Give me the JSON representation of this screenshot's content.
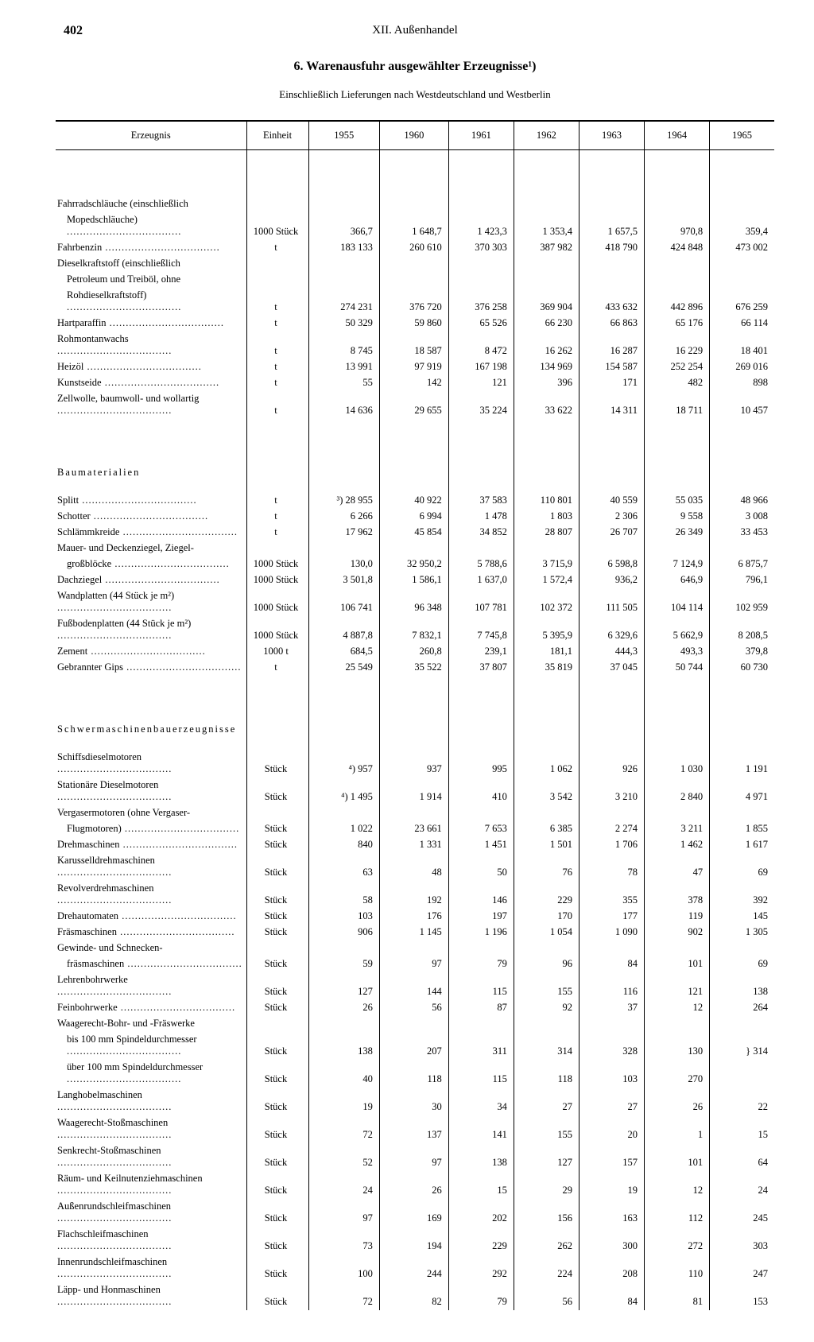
{
  "page_number": "402",
  "chapter": "XII. Außenhandel",
  "title": "6. Warenausfuhr ausgewählter Erzeugnisse¹)",
  "subtitle": "Einschließlich Lieferungen nach Westdeutschland und Westberlin",
  "columns": [
    "Erzeugnis",
    "Einheit",
    "1955",
    "1960",
    "1961",
    "1962",
    "1963",
    "1964",
    "1965"
  ],
  "rows": [
    {
      "label": "Fahrradschläuche (einschließlich",
      "cont": true
    },
    {
      "label": "Mopedschläuche)",
      "indent": true,
      "unit": "1000 Stück",
      "v": [
        "366,7",
        "1 648,7",
        "1 423,3",
        "1 353,4",
        "1 657,5",
        "970,8",
        "359,4"
      ]
    },
    {
      "label": "Fahrbenzin",
      "unit": "t",
      "v": [
        "183 133",
        "260 610",
        "370 303",
        "387 982",
        "418 790",
        "424 848",
        "473 002"
      ]
    },
    {
      "label": "Dieselkraftstoff (einschließlich",
      "cont": true
    },
    {
      "label": "Petroleum und Treiböl, ohne",
      "indent": true,
      "cont": true
    },
    {
      "label": "Rohdieselkraftstoff)",
      "indent": true,
      "unit": "t",
      "v": [
        "274 231",
        "376 720",
        "376 258",
        "369 904",
        "433 632",
        "442 896",
        "676 259"
      ]
    },
    {
      "label": "Hartparaffin",
      "unit": "t",
      "v": [
        "50 329",
        "59 860",
        "65 526",
        "66 230",
        "66 863",
        "65 176",
        "66 114"
      ]
    },
    {
      "label": "Rohmontanwachs",
      "unit": "t",
      "v": [
        "8 745",
        "18 587",
        "8 472",
        "16 262",
        "16 287",
        "16 229",
        "18 401"
      ]
    },
    {
      "label": "Heizöl",
      "unit": "t",
      "v": [
        "13 991",
        "97 919",
        "167 198",
        "134 969",
        "154 587",
        "252 254",
        "269 016"
      ]
    },
    {
      "label": "Kunstseide",
      "unit": "t",
      "v": [
        "55",
        "142",
        "121",
        "396",
        "171",
        "482",
        "898"
      ]
    },
    {
      "label": "Zellwolle, baumwoll- und wollartig",
      "unit": "t",
      "v": [
        "14 636",
        "29 655",
        "35 224",
        "33 622",
        "14 311",
        "18 711",
        "10 457"
      ]
    },
    {
      "section": "Baumaterialien"
    },
    {
      "label": "Splitt",
      "unit": "t",
      "v": [
        "³) 28 955",
        "40 922",
        "37 583",
        "110 801",
        "40 559",
        "55 035",
        "48 966"
      ]
    },
    {
      "label": "Schotter",
      "unit": "t",
      "v": [
        "6 266",
        "6 994",
        "1 478",
        "1 803",
        "2 306",
        "9 558",
        "3 008"
      ]
    },
    {
      "label": "Schlämmkreide",
      "unit": "t",
      "v": [
        "17 962",
        "45 854",
        "34 852",
        "28 807",
        "26 707",
        "26 349",
        "33 453"
      ]
    },
    {
      "label": "Mauer- und Deckenziegel, Ziegel-",
      "cont": true
    },
    {
      "label": "großblöcke",
      "indent": true,
      "unit": "1000 Stück",
      "v": [
        "130,0",
        "32 950,2",
        "5 788,6",
        "3 715,9",
        "6 598,8",
        "7 124,9",
        "6 875,7"
      ]
    },
    {
      "label": "Dachziegel",
      "unit": "1000 Stück",
      "v": [
        "3 501,8",
        "1 586,1",
        "1 637,0",
        "1 572,4",
        "936,2",
        "646,9",
        "796,1"
      ]
    },
    {
      "label": "Wandplatten (44 Stück je m²)",
      "unit": "1000 Stück",
      "v": [
        "106 741",
        "96 348",
        "107 781",
        "102 372",
        "111 505",
        "104 114",
        "102 959"
      ]
    },
    {
      "label": "Fußbodenplatten (44 Stück je m²)",
      "unit": "1000 Stück",
      "v": [
        "4 887,8",
        "7 832,1",
        "7 745,8",
        "5 395,9",
        "6 329,6",
        "5 662,9",
        "8 208,5"
      ]
    },
    {
      "label": "Zement",
      "unit": "1000 t",
      "v": [
        "684,5",
        "260,8",
        "239,1",
        "181,1",
        "444,3",
        "493,3",
        "379,8"
      ]
    },
    {
      "label": "Gebrannter Gips",
      "unit": "t",
      "v": [
        "25 549",
        "35 522",
        "37 807",
        "35 819",
        "37 045",
        "50 744",
        "60 730"
      ]
    },
    {
      "section": "Schwermaschinenbauerzeugnisse"
    },
    {
      "label": "Schiffsdieselmotoren",
      "unit": "Stück",
      "v": [
        "⁴) 957",
        "937",
        "995",
        "1 062",
        "926",
        "1 030",
        "1 191"
      ]
    },
    {
      "label": "Stationäre Dieselmotoren",
      "unit": "Stück",
      "v": [
        "⁴) 1 495",
        "1 914",
        "410",
        "3 542",
        "3 210",
        "2 840",
        "4 971"
      ]
    },
    {
      "label": "Vergasermotoren (ohne Vergaser-",
      "cont": true
    },
    {
      "label": "Flugmotoren)",
      "indent": true,
      "unit": "Stück",
      "v": [
        "1 022",
        "23 661",
        "7 653",
        "6 385",
        "2 274",
        "3 211",
        "1 855"
      ]
    },
    {
      "label": "Drehmaschinen",
      "unit": "Stück",
      "v": [
        "840",
        "1 331",
        "1 451",
        "1 501",
        "1 706",
        "1 462",
        "1 617"
      ]
    },
    {
      "label": "Karusselldrehmaschinen",
      "unit": "Stück",
      "v": [
        "63",
        "48",
        "50",
        "76",
        "78",
        "47",
        "69"
      ]
    },
    {
      "label": "Revolverdrehmaschinen",
      "unit": "Stück",
      "v": [
        "58",
        "192",
        "146",
        "229",
        "355",
        "378",
        "392"
      ]
    },
    {
      "label": "Drehautomaten",
      "unit": "Stück",
      "v": [
        "103",
        "176",
        "197",
        "170",
        "177",
        "119",
        "145"
      ]
    },
    {
      "label": "Fräsmaschinen",
      "unit": "Stück",
      "v": [
        "906",
        "1 145",
        "1 196",
        "1 054",
        "1 090",
        "902",
        "1 305"
      ]
    },
    {
      "label": "Gewinde- und Schnecken-",
      "cont": true
    },
    {
      "label": "fräsmaschinen",
      "indent": true,
      "unit": "Stück",
      "v": [
        "59",
        "97",
        "79",
        "96",
        "84",
        "101",
        "69"
      ]
    },
    {
      "label": "Lehrenbohrwerke",
      "unit": "Stück",
      "v": [
        "127",
        "144",
        "115",
        "155",
        "116",
        "121",
        "138"
      ]
    },
    {
      "label": "Feinbohrwerke",
      "unit": "Stück",
      "v": [
        "26",
        "56",
        "87",
        "92",
        "37",
        "12",
        "264"
      ]
    },
    {
      "label": "Waagerecht-Bohr- und -Fräswerke",
      "cont": true
    },
    {
      "label": "bis 100 mm Spindeldurchmesser",
      "indent": true,
      "unit": "Stück",
      "v": [
        "138",
        "207",
        "311",
        "314",
        "328",
        "130",
        "} 314"
      ],
      "brace_top": true
    },
    {
      "label": "über 100 mm Spindeldurchmesser",
      "indent": true,
      "unit": "Stück",
      "v": [
        "40",
        "118",
        "115",
        "118",
        "103",
        "270",
        ""
      ],
      "brace_bot": true
    },
    {
      "label": "Langhobelmaschinen",
      "unit": "Stück",
      "v": [
        "19",
        "30",
        "34",
        "27",
        "27",
        "26",
        "22"
      ]
    },
    {
      "label": "Waagerecht-Stoßmaschinen",
      "unit": "Stück",
      "v": [
        "72",
        "137",
        "141",
        "155",
        "20",
        "1",
        "15"
      ]
    },
    {
      "label": "Senkrecht-Stoßmaschinen",
      "unit": "Stück",
      "v": [
        "52",
        "97",
        "138",
        "127",
        "157",
        "101",
        "64"
      ]
    },
    {
      "label": "Räum- und Keilnutenziehmaschinen",
      "unit": "Stück",
      "v": [
        "24",
        "26",
        "15",
        "29",
        "19",
        "12",
        "24"
      ]
    },
    {
      "label": "Außenrundschleifmaschinen",
      "unit": "Stück",
      "v": [
        "97",
        "169",
        "202",
        "156",
        "163",
        "112",
        "245"
      ]
    },
    {
      "label": "Flachschleifmaschinen",
      "unit": "Stück",
      "v": [
        "73",
        "194",
        "229",
        "262",
        "300",
        "272",
        "303"
      ]
    },
    {
      "label": "Innenrundschleifmaschinen",
      "unit": "Stück",
      "v": [
        "100",
        "244",
        "292",
        "224",
        "208",
        "110",
        "247"
      ]
    },
    {
      "label": "Läpp- und Honmaschinen",
      "unit": "Stück",
      "v": [
        "72",
        "82",
        "79",
        "56",
        "84",
        "81",
        "153"
      ]
    }
  ]
}
